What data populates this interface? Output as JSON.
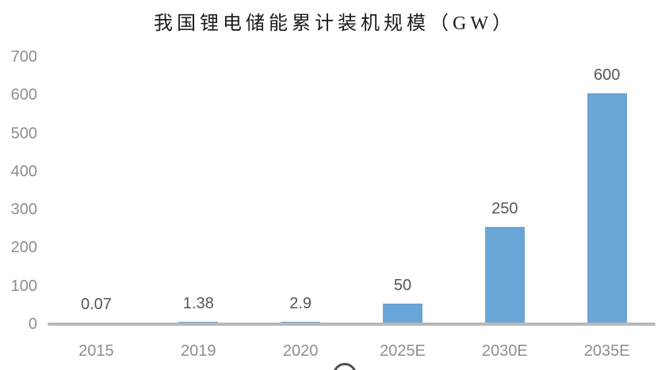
{
  "title": "我国锂电储能累计装机规模（GW）",
  "chart_data": {
    "type": "bar",
    "title": "我国锂电储能累计装机规模（GW）",
    "categories": [
      "2015",
      "2019",
      "2020",
      "2025E",
      "2030E",
      "2035E"
    ],
    "values": [
      0.07,
      1.38,
      2.9,
      50,
      250,
      600
    ],
    "value_labels": [
      "0.07",
      "1.38",
      "2.9",
      "50",
      "250",
      "600"
    ],
    "xlabel": "",
    "ylabel": "",
    "ylim": [
      0,
      700
    ],
    "yticks": [
      0,
      100,
      200,
      300,
      400,
      500,
      600,
      700
    ],
    "grid": false,
    "legend": false,
    "colors": {
      "bar": "#69A5D7",
      "axis_line": "#b8b8b8",
      "tick_label": "#8e8e8e",
      "data_label": "#565656",
      "title": "#1c1c1c"
    }
  }
}
